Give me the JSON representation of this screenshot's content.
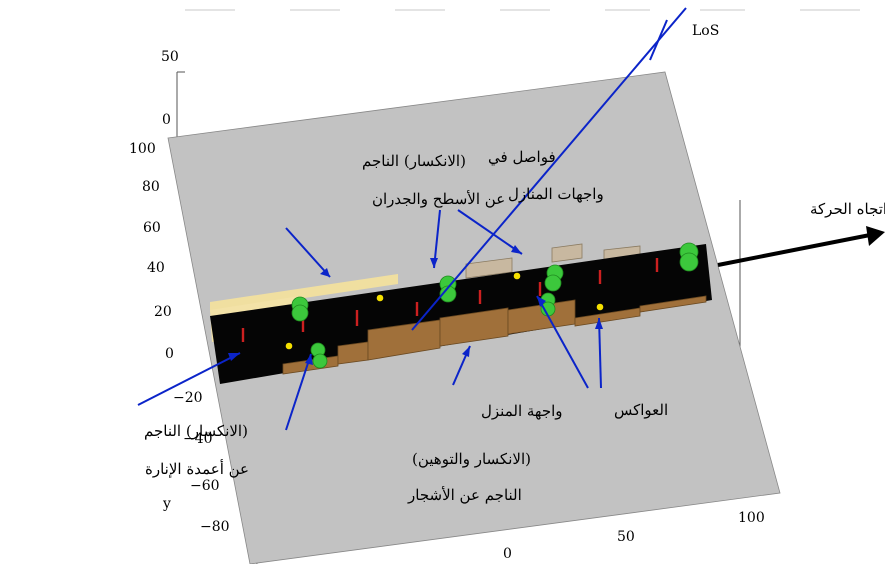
{
  "axes": {
    "z_ticks": [
      "50",
      "0"
    ],
    "y_ticks": [
      "100",
      "80",
      "60",
      "40",
      "20",
      "0",
      "−20",
      "−40",
      "−60",
      "−80"
    ],
    "y_label": "y",
    "x_ticks": [
      "0",
      "50",
      "100"
    ]
  },
  "labels": {
    "los": "LoS",
    "motion_direction": "اتجاه الحركة",
    "roof_wall_diffraction": [
      "(الانكسار) الناجم",
      "عن الأسطح والجدران"
    ],
    "house_facade_gaps": [
      "فواصل في",
      "واجهات المنازل"
    ],
    "lamp_post_diffraction": [
      "(الانكسار) الناجم",
      "عن أعمدة الإنارة"
    ],
    "tree_diffraction_attenuation": [
      "(الانكسار والتوهين)",
      "الناجم عن الأشجار"
    ],
    "house_facade": "واجهة المنزل",
    "reflectors": "العواكس"
  },
  "colors": {
    "ground": "#c2c2c2",
    "road": "#050505",
    "roof": "#f0dfa0",
    "facade": "#a0703a",
    "house_box": "#c8b8a0",
    "tree": "#3cc83c",
    "pole": "#cc2020",
    "reflector": "#f5e000",
    "arrow_blue": "#0b24c9",
    "motion_arrow": "#000000"
  }
}
